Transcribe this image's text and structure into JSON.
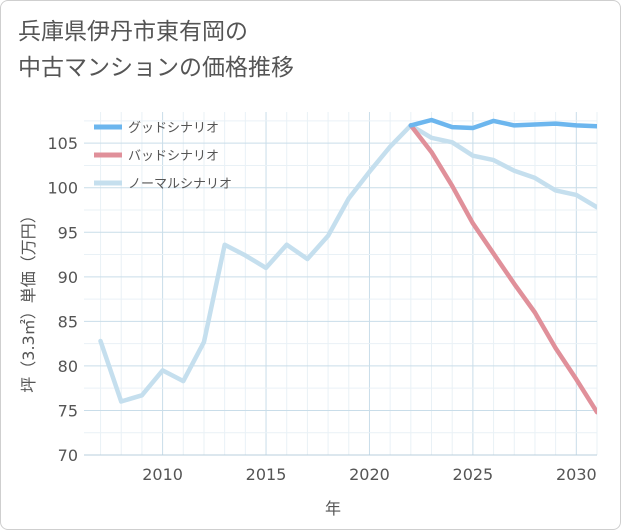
{
  "title_line1": "兵庫県伊丹市東有岡の",
  "title_line2": "中古マンションの価格推移",
  "chart_data": {
    "type": "line",
    "xlabel": "年",
    "ylabel": "坪（3.3㎡）単価（万円）",
    "xlim": [
      2006.2,
      2031
    ],
    "ylim": [
      70,
      108.5
    ],
    "xticks": [
      2010,
      2015,
      2020,
      2025,
      2030
    ],
    "yticks": [
      70,
      75,
      80,
      85,
      90,
      95,
      100,
      105
    ],
    "grid": true,
    "legend_position": "top-left",
    "series": [
      {
        "name": "グッドシナリオ",
        "color": "#6cb6ee",
        "x": [
          2022,
          2023,
          2024,
          2025,
          2026,
          2027,
          2028,
          2029,
          2030,
          2031
        ],
        "y": [
          107.0,
          107.6,
          106.8,
          106.7,
          107.5,
          107.0,
          107.1,
          107.2,
          107.0,
          106.9
        ]
      },
      {
        "name": "バッドシナリオ",
        "color": "#e0909a",
        "x": [
          2022,
          2023,
          2024,
          2025,
          2026,
          2027,
          2028,
          2029,
          2030,
          2031
        ],
        "y": [
          107.0,
          104.0,
          100.2,
          96.0,
          92.6,
          89.2,
          86.0,
          82.0,
          78.5,
          74.8
        ]
      },
      {
        "name": "ノーマルシナリオ",
        "color": "#c5dfee",
        "x": [
          2007,
          2008,
          2009,
          2010,
          2011,
          2012,
          2013,
          2014,
          2015,
          2016,
          2017,
          2018,
          2019,
          2020,
          2021,
          2022,
          2023,
          2024,
          2025,
          2026,
          2027,
          2028,
          2029,
          2030,
          2031
        ],
        "y": [
          82.8,
          76.0,
          76.7,
          79.5,
          78.3,
          82.7,
          93.6,
          92.4,
          91.0,
          93.6,
          92.0,
          94.6,
          98.8,
          101.8,
          104.6,
          107.0,
          105.6,
          105.1,
          103.6,
          103.1,
          101.9,
          101.1,
          99.7,
          99.2,
          97.8
        ]
      }
    ]
  }
}
